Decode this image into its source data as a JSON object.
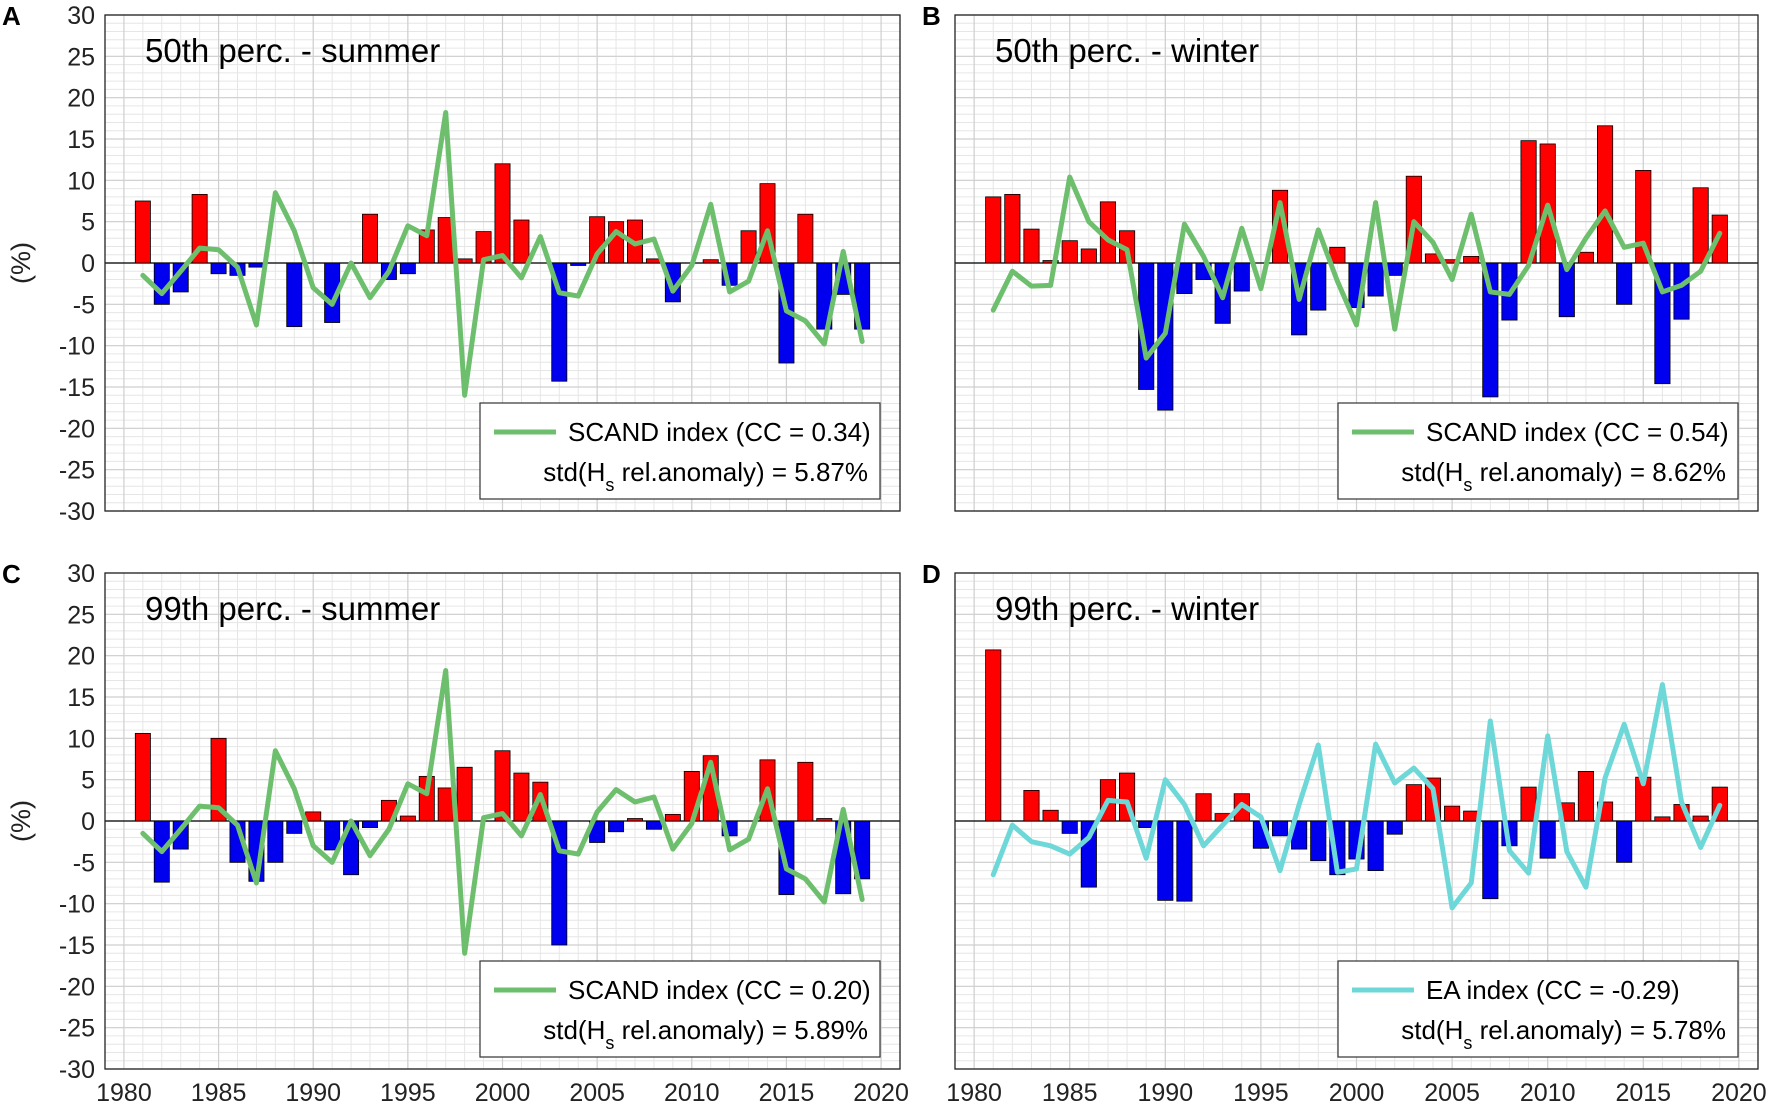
{
  "chart_data": [
    {
      "type": "bar",
      "panel_label": "A",
      "title": "50th perc. - summer",
      "ylabel": "(%)",
      "xlabel": "",
      "xlim": [
        1979,
        2021
      ],
      "ylim": [
        -30,
        30
      ],
      "yticks": [
        -30,
        -25,
        -20,
        -15,
        -10,
        -5,
        0,
        5,
        10,
        15,
        20,
        25,
        30
      ],
      "xticks": [
        1980,
        1985,
        1990,
        1995,
        2000,
        2005,
        2010,
        2015,
        2020
      ],
      "show_y_labels": true,
      "show_x_labels": false,
      "grid": true,
      "legend_position": "bottom-right",
      "years": [
        1981,
        1982,
        1983,
        1984,
        1985,
        1986,
        1987,
        1988,
        1989,
        1990,
        1991,
        1992,
        1993,
        1994,
        1995,
        1996,
        1997,
        1998,
        1999,
        2000,
        2001,
        2002,
        2003,
        2004,
        2005,
        2006,
        2007,
        2008,
        2009,
        2010,
        2011,
        2012,
        2013,
        2014,
        2015,
        2016,
        2017,
        2018,
        2019
      ],
      "series": [
        {
          "name": "std(Hs rel.anomaly)",
          "kind": "bar",
          "positive_color": "#ff0000",
          "negative_color": "#0000ee",
          "values": [
            7.5,
            -5.0,
            -3.5,
            8.3,
            -1.3,
            -1.5,
            -0.5,
            0.0,
            -7.7,
            0.0,
            -7.2,
            0.0,
            5.9,
            -2.0,
            -1.3,
            4.0,
            5.5,
            0.5,
            3.8,
            12.0,
            5.2,
            0.0,
            -14.3,
            -0.3,
            5.6,
            5.0,
            5.2,
            0.5,
            -4.7,
            0.0,
            0.4,
            -2.7,
            3.9,
            9.6,
            -12.1,
            5.9,
            -8.0,
            -3.8,
            -8.0
          ]
        },
        {
          "name": "SCAND index (CC = 0.34)",
          "kind": "line",
          "color": "#6dbf6d",
          "values": [
            -1.5,
            -3.7,
            -1.0,
            1.8,
            1.6,
            -0.5,
            -7.5,
            8.5,
            3.9,
            -3.0,
            -5.0,
            0.0,
            -4.2,
            -1.0,
            4.5,
            3.3,
            18.2,
            -16.0,
            0.4,
            0.9,
            -1.8,
            3.2,
            -3.6,
            -4.0,
            1.1,
            3.8,
            2.3,
            2.9,
            -3.4,
            -0.3,
            7.1,
            -3.5,
            -2.2,
            3.9,
            -5.8,
            -7.0,
            -9.8,
            1.4,
            -9.5
          ]
        }
      ],
      "legend": {
        "line_label": "SCAND index (CC = 0.34)",
        "stat_prefix": "std(H",
        "stat_sub": "s",
        "stat_suffix": " rel.anomaly) = 5.87%"
      }
    },
    {
      "type": "bar",
      "panel_label": "B",
      "title": "50th perc. - winter",
      "ylabel": "",
      "xlabel": "",
      "xlim": [
        1979,
        2021
      ],
      "ylim": [
        -30,
        30
      ],
      "yticks": [
        -30,
        -25,
        -20,
        -15,
        -10,
        -5,
        0,
        5,
        10,
        15,
        20,
        25,
        30
      ],
      "xticks": [
        1980,
        1985,
        1990,
        1995,
        2000,
        2005,
        2010,
        2015,
        2020
      ],
      "show_y_labels": false,
      "show_x_labels": false,
      "grid": true,
      "legend_position": "bottom-right",
      "years": [
        1981,
        1982,
        1983,
        1984,
        1985,
        1986,
        1987,
        1988,
        1989,
        1990,
        1991,
        1992,
        1993,
        1994,
        1995,
        1996,
        1997,
        1998,
        1999,
        2000,
        2001,
        2002,
        2003,
        2004,
        2005,
        2006,
        2007,
        2008,
        2009,
        2010,
        2011,
        2012,
        2013,
        2014,
        2015,
        2016,
        2017,
        2018,
        2019
      ],
      "series": [
        {
          "name": "std(Hs rel.anomaly)",
          "kind": "bar",
          "positive_color": "#ff0000",
          "negative_color": "#0000ee",
          "values": [
            8.0,
            8.3,
            4.1,
            0.3,
            2.7,
            1.7,
            7.4,
            3.9,
            -15.3,
            -17.8,
            -3.7,
            -2.0,
            -7.3,
            -3.4,
            0.0,
            8.8,
            -8.7,
            -5.7,
            1.9,
            -5.4,
            -4.0,
            -1.5,
            10.5,
            1.1,
            0.4,
            0.8,
            -16.2,
            -6.9,
            14.8,
            14.4,
            -6.5,
            1.3,
            16.6,
            -5.0,
            11.2,
            -14.6,
            -6.8,
            9.1,
            5.8
          ]
        },
        {
          "name": "SCAND index (CC = 0.54)",
          "kind": "line",
          "color": "#6dbf6d",
          "values": [
            -5.7,
            -1.0,
            -2.8,
            -2.7,
            10.4,
            5.0,
            2.8,
            1.6,
            -11.5,
            -8.5,
            4.7,
            0.8,
            -4.2,
            4.2,
            -3.1,
            7.3,
            -4.4,
            4.0,
            -2.2,
            -7.5,
            7.3,
            -8.0,
            5.0,
            2.5,
            -2.0,
            5.9,
            -3.5,
            -3.8,
            -0.3,
            7.0,
            -0.8,
            3.0,
            6.3,
            1.9,
            2.4,
            -3.5,
            -2.7,
            -1.0,
            3.6
          ]
        }
      ],
      "legend": {
        "line_label": "SCAND index (CC = 0.54)",
        "stat_prefix": "std(H",
        "stat_sub": "s",
        "stat_suffix": " rel.anomaly) = 8.62%"
      }
    },
    {
      "type": "bar",
      "panel_label": "C",
      "title": "99th perc. - summer",
      "ylabel": "(%)",
      "xlabel": "",
      "xlim": [
        1979,
        2021
      ],
      "ylim": [
        -30,
        30
      ],
      "yticks": [
        -30,
        -25,
        -20,
        -15,
        -10,
        -5,
        0,
        5,
        10,
        15,
        20,
        25,
        30
      ],
      "xticks": [
        1980,
        1985,
        1990,
        1995,
        2000,
        2005,
        2010,
        2015,
        2020
      ],
      "show_y_labels": true,
      "show_x_labels": true,
      "grid": true,
      "legend_position": "bottom-right",
      "years": [
        1981,
        1982,
        1983,
        1984,
        1985,
        1986,
        1987,
        1988,
        1989,
        1990,
        1991,
        1992,
        1993,
        1994,
        1995,
        1996,
        1997,
        1998,
        1999,
        2000,
        2001,
        2002,
        2003,
        2004,
        2005,
        2006,
        2007,
        2008,
        2009,
        2010,
        2011,
        2012,
        2013,
        2014,
        2015,
        2016,
        2017,
        2018,
        2019
      ],
      "series": [
        {
          "name": "std(Hs rel.anomaly)",
          "kind": "bar",
          "positive_color": "#ff0000",
          "negative_color": "#0000ee",
          "values": [
            10.6,
            -7.4,
            -3.4,
            0.0,
            10.0,
            -5.0,
            -7.3,
            -5.0,
            -1.5,
            1.1,
            -3.5,
            -6.5,
            -0.8,
            2.5,
            0.6,
            5.4,
            4.0,
            6.5,
            0.0,
            8.5,
            5.8,
            4.7,
            -15.0,
            0.0,
            -2.6,
            -1.3,
            0.3,
            -1.0,
            0.8,
            6.0,
            7.9,
            -1.8,
            0.0,
            7.4,
            -8.9,
            7.1,
            0.3,
            -8.8,
            -7.0
          ]
        },
        {
          "name": "SCAND index (CC = 0.20)",
          "kind": "line",
          "color": "#6dbf6d",
          "values": [
            -1.5,
            -3.7,
            -1.0,
            1.8,
            1.6,
            -0.5,
            -7.5,
            8.5,
            3.9,
            -3.0,
            -5.0,
            0.0,
            -4.2,
            -1.0,
            4.5,
            3.3,
            18.2,
            -16.0,
            0.4,
            0.9,
            -1.8,
            3.2,
            -3.6,
            -4.0,
            1.1,
            3.8,
            2.3,
            2.9,
            -3.4,
            -0.3,
            7.1,
            -3.5,
            -2.2,
            3.9,
            -5.8,
            -7.0,
            -9.8,
            1.4,
            -9.5
          ]
        }
      ],
      "legend": {
        "line_label": "SCAND index (CC = 0.20)",
        "stat_prefix": "std(H",
        "stat_sub": "s",
        "stat_suffix": " rel.anomaly) = 5.89%"
      }
    },
    {
      "type": "bar",
      "panel_label": "D",
      "title": "99th perc. - winter",
      "ylabel": "",
      "xlabel": "",
      "xlim": [
        1979,
        2021
      ],
      "ylim": [
        -30,
        30
      ],
      "yticks": [
        -30,
        -25,
        -20,
        -15,
        -10,
        -5,
        0,
        5,
        10,
        15,
        20,
        25,
        30
      ],
      "xticks": [
        1980,
        1985,
        1990,
        1995,
        2000,
        2005,
        2010,
        2015,
        2020
      ],
      "show_y_labels": false,
      "show_x_labels": true,
      "grid": true,
      "legend_position": "bottom-right",
      "years": [
        1981,
        1982,
        1983,
        1984,
        1985,
        1986,
        1987,
        1988,
        1989,
        1990,
        1991,
        1992,
        1993,
        1994,
        1995,
        1996,
        1997,
        1998,
        1999,
        2000,
        2001,
        2002,
        2003,
        2004,
        2005,
        2006,
        2007,
        2008,
        2009,
        2010,
        2011,
        2012,
        2013,
        2014,
        2015,
        2016,
        2017,
        2018,
        2019
      ],
      "series": [
        {
          "name": "std(Hs rel.anomaly)",
          "kind": "bar",
          "positive_color": "#ff0000",
          "negative_color": "#0000ee",
          "values": [
            20.7,
            0.0,
            3.7,
            1.3,
            -1.5,
            -8.0,
            5.0,
            5.8,
            -0.8,
            -9.6,
            -9.7,
            3.3,
            0.9,
            3.3,
            -3.3,
            -1.8,
            -3.4,
            -4.8,
            -6.5,
            -4.6,
            -6.0,
            -1.6,
            4.4,
            5.2,
            1.8,
            1.2,
            -9.4,
            -3.0,
            4.1,
            -4.5,
            2.2,
            6.0,
            2.3,
            -5.0,
            5.3,
            0.5,
            2.0,
            0.6,
            4.1
          ]
        },
        {
          "name": "EA index (CC = -0.29)",
          "kind": "line",
          "color": "#6ed8d8",
          "values": [
            -6.5,
            -0.5,
            -2.5,
            -3.0,
            -4.0,
            -2.0,
            2.5,
            2.3,
            -4.5,
            5.0,
            2.0,
            -3.0,
            -0.5,
            2.0,
            0.5,
            -6.0,
            2.0,
            9.2,
            -6.2,
            -5.8,
            9.3,
            4.6,
            6.4,
            3.9,
            -10.5,
            -7.5,
            12.1,
            -3.6,
            -6.3,
            10.3,
            -3.7,
            -8.0,
            5.2,
            11.7,
            4.5,
            16.5,
            2.3,
            -3.2,
            1.9
          ]
        }
      ],
      "legend": {
        "line_label": "EA index (CC = -0.29)",
        "stat_prefix": "std(H",
        "stat_sub": "s",
        "stat_suffix": " rel.anomaly) = 5.78%"
      }
    }
  ]
}
